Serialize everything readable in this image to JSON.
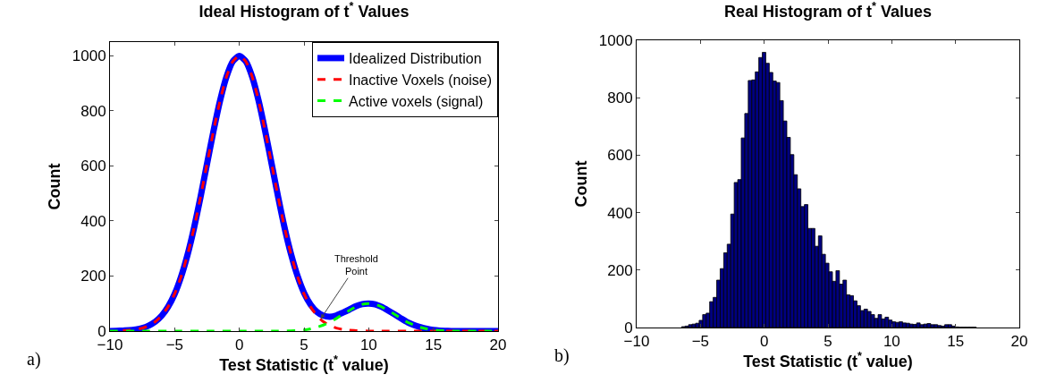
{
  "chart_data": [
    {
      "type": "line",
      "title": "Ideal Histogram of t$^{*}$ Values",
      "xlabel": "Test Statistic (t$^{*}$ value)",
      "ylabel": "Count",
      "x": [
        -10,
        -9.5,
        -9,
        -8.5,
        -8,
        -7.5,
        -7,
        -6.5,
        -6,
        -5.5,
        -5,
        -4.5,
        -4,
        -3.5,
        -3,
        -2.5,
        -2,
        -1.5,
        -1,
        -0.5,
        0,
        0.5,
        1,
        1.5,
        2,
        2.5,
        3,
        3.5,
        4,
        4.5,
        5,
        5.5,
        6,
        6.5,
        7,
        7.5,
        8,
        8.5,
        9,
        9.5,
        10,
        10.5,
        11,
        11.5,
        12,
        12.5,
        13,
        13.5,
        14,
        14.5,
        15,
        15.5,
        16,
        16.5,
        17,
        17.5,
        18,
        18.5,
        19,
        19.5,
        20
      ],
      "series": [
        {
          "name": "Idealized Distribution",
          "color": "#0000ff",
          "line_style": "solid",
          "values": [
            0,
            1,
            2,
            3,
            6,
            11,
            20,
            34,
            56,
            89,
            135,
            198,
            278,
            375,
            487,
            607,
            726,
            835,
            923,
            980,
            1000,
            980,
            923,
            835,
            726,
            607,
            487,
            375,
            279,
            200,
            139,
            97,
            70,
            56,
            52,
            57,
            67,
            78,
            90,
            98,
            100,
            97,
            88,
            75,
            61,
            46,
            32,
            22,
            14,
            8,
            4,
            2,
            1,
            0,
            0,
            0,
            0,
            0,
            0,
            0,
            0
          ]
        },
        {
          "name": "Inactive Voxels (noise)",
          "color": "#ff0000",
          "line_style": "dashed",
          "values": [
            null,
            null,
            2,
            3,
            6,
            11,
            20,
            34,
            56,
            89,
            135,
            198,
            278,
            375,
            487,
            607,
            726,
            835,
            923,
            980,
            1000,
            980,
            923,
            835,
            726,
            607,
            487,
            375,
            278,
            198,
            135,
            89,
            56,
            34,
            20,
            11,
            6,
            3,
            2,
            1,
            0,
            0,
            0,
            0,
            0,
            0,
            0,
            0,
            0,
            0,
            0,
            0,
            0,
            0,
            0,
            0,
            0,
            0,
            0,
            0,
            0
          ]
        },
        {
          "name": "Active voxels (signal)",
          "color": "#00ff00",
          "line_style": "dashed",
          "values": [
            0,
            0,
            0,
            0,
            0,
            0,
            0,
            0,
            0,
            0,
            0,
            0,
            0,
            0,
            0,
            0,
            0,
            0,
            0,
            0,
            0,
            0,
            0,
            0,
            0,
            0,
            0,
            0,
            1,
            2,
            4,
            8,
            14,
            22,
            32,
            46,
            61,
            75,
            88,
            97,
            100,
            97,
            88,
            75,
            61,
            46,
            32,
            22,
            14,
            8,
            4,
            2,
            1,
            0,
            0,
            0,
            0,
            0,
            0,
            0,
            0
          ]
        }
      ],
      "xlim": [
        -10,
        20
      ],
      "xticks": [
        -10,
        -5,
        0,
        5,
        10,
        15,
        20
      ],
      "ylim": [
        0,
        1050
      ],
      "yticks": [
        0,
        200,
        400,
        600,
        800,
        1000
      ],
      "grid": false,
      "legend": "top right",
      "annotations": [
        "a)",
        {
          "text": "Threshold\nPoint",
          "x": 6.3,
          "y": 45
        }
      ]
    },
    {
      "type": "histogram",
      "title": "Real Histogram of t$^{*}$ Values",
      "xlabel": "Test Statistic (t$^{*}$ value)",
      "ylabel": "Count",
      "color": "#000080",
      "bins": [
        -6.475,
        -6.2,
        -5.925,
        -5.65,
        -5.375,
        -5.1,
        -4.825,
        -4.55,
        -4.275,
        -4,
        -3.725,
        -3.45,
        -3.175,
        -2.9,
        -2.625,
        -2.35,
        -2.075,
        -1.8,
        -1.525,
        -1.25,
        -0.975,
        -0.7,
        -0.425,
        -0.15,
        0.125,
        0.4,
        0.675,
        0.95,
        1.225,
        1.5,
        1.775,
        2.05,
        2.325,
        2.6,
        2.875,
        3.15,
        3.425,
        3.7,
        3.975,
        4.25,
        4.525,
        4.8,
        5.075,
        5.35,
        5.625,
        5.9,
        6.175,
        6.45,
        6.725,
        7,
        7.275,
        7.55,
        7.825,
        8.1,
        8.375,
        8.65,
        8.925,
        9.2,
        9.475,
        9.75,
        10.025,
        10.3,
        10.575,
        10.85,
        11.125,
        11.4,
        11.675,
        11.95,
        12.225,
        12.5,
        12.775,
        13.05,
        13.325,
        13.6,
        13.875,
        14.15,
        14.425,
        14.7,
        14.975,
        15.25,
        15.525,
        15.8,
        16.075,
        16.35,
        16.625
      ],
      "values": [
        3,
        5,
        10,
        12,
        15,
        25,
        45,
        50,
        90,
        105,
        165,
        205,
        260,
        290,
        395,
        505,
        515,
        660,
        745,
        860,
        862,
        890,
        940,
        958,
        920,
        888,
        858,
        853,
        790,
        719,
        662,
        602,
        532,
        483,
        421,
        428,
        345,
        345,
        283,
        319,
        255,
        224,
        194,
        161,
        198,
        151,
        165,
        114,
        111,
        93,
        76,
        59,
        64,
        56,
        45,
        32,
        45,
        30,
        36,
        26,
        20,
        18,
        20,
        16,
        15,
        12,
        11,
        16,
        10,
        12,
        14,
        10,
        10,
        7,
        5,
        10,
        10,
        5,
        2,
        1,
        1,
        1,
        1,
        1
      ],
      "xlim": [
        -10,
        20
      ],
      "xticks": [
        -10,
        -5,
        0,
        5,
        10,
        15,
        20
      ],
      "ylim": [
        0,
        1000
      ],
      "yticks": [
        0,
        200,
        400,
        600,
        800,
        1000
      ],
      "grid": false,
      "legend": false,
      "annotations": [
        "b)"
      ]
    }
  ]
}
